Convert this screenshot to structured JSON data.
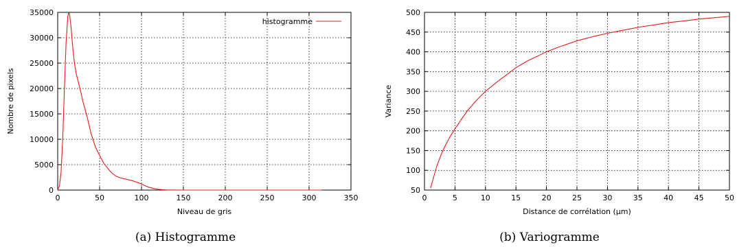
{
  "chart_data": [
    {
      "type": "line",
      "panel": "a",
      "caption": "(a)  Histogramme",
      "xlabel": "Niveau de gris",
      "ylabel": "Nombre de pixels",
      "xlim": [
        0,
        350
      ],
      "ylim": [
        0,
        35000
      ],
      "xticks": [
        0,
        50,
        100,
        150,
        200,
        250,
        300,
        350
      ],
      "yticks": [
        0,
        5000,
        10000,
        15000,
        20000,
        25000,
        30000,
        35000
      ],
      "grid": true,
      "legend": "top-right",
      "series": [
        {
          "name": "histogramme",
          "color": "#e41a1c",
          "points": [
            [
              0,
              0
            ],
            [
              2,
              800
            ],
            [
              4,
              3500
            ],
            [
              6,
              10000
            ],
            [
              8,
              20000
            ],
            [
              10,
              29000
            ],
            [
              12,
              34000
            ],
            [
              13,
              35000
            ],
            [
              14,
              34800
            ],
            [
              16,
              32000
            ],
            [
              18,
              28000
            ],
            [
              20,
              25000
            ],
            [
              22,
              23000
            ],
            [
              25,
              21000
            ],
            [
              28,
              19000
            ],
            [
              30,
              17500
            ],
            [
              35,
              14500
            ],
            [
              40,
              11000
            ],
            [
              45,
              8500
            ],
            [
              50,
              6800
            ],
            [
              55,
              5300
            ],
            [
              60,
              4200
            ],
            [
              65,
              3300
            ],
            [
              70,
              2700
            ],
            [
              75,
              2400
            ],
            [
              80,
              2200
            ],
            [
              85,
              2000
            ],
            [
              90,
              1800
            ],
            [
              95,
              1500
            ],
            [
              100,
              1200
            ],
            [
              105,
              800
            ],
            [
              110,
              500
            ],
            [
              115,
              300
            ],
            [
              120,
              150
            ],
            [
              125,
              70
            ],
            [
              130,
              30
            ],
            [
              140,
              10
            ],
            [
              150,
              0
            ],
            [
              200,
              0
            ],
            [
              250,
              0
            ],
            [
              300,
              0
            ],
            [
              315,
              0
            ]
          ]
        }
      ]
    },
    {
      "type": "line",
      "panel": "b",
      "caption": "(b)  Variogramme",
      "xlabel": "Distance de corrélation (μm)",
      "ylabel": "Variance",
      "xlim": [
        0,
        50
      ],
      "ylim": [
        50,
        500
      ],
      "xticks": [
        0,
        5,
        10,
        15,
        20,
        25,
        30,
        35,
        40,
        45,
        50
      ],
      "yticks": [
        50,
        100,
        150,
        200,
        250,
        300,
        350,
        400,
        450,
        500
      ],
      "grid": true,
      "series": [
        {
          "color": "#e41a1c",
          "points": [
            [
              1,
              55
            ],
            [
              2,
              110
            ],
            [
              3,
              150
            ],
            [
              4,
              180
            ],
            [
              5,
              205
            ],
            [
              6,
              228
            ],
            [
              7,
              250
            ],
            [
              8,
              268
            ],
            [
              9,
              285
            ],
            [
              10,
              300
            ],
            [
              12,
              325
            ],
            [
              14,
              348
            ],
            [
              15,
              360
            ],
            [
              17,
              378
            ],
            [
              20,
              400
            ],
            [
              22,
              412
            ],
            [
              25,
              428
            ],
            [
              28,
              440
            ],
            [
              30,
              447
            ],
            [
              33,
              456
            ],
            [
              35,
              462
            ],
            [
              38,
              469
            ],
            [
              40,
              474
            ],
            [
              43,
              479
            ],
            [
              45,
              483
            ],
            [
              48,
              487
            ],
            [
              50,
              490
            ]
          ]
        }
      ]
    }
  ]
}
